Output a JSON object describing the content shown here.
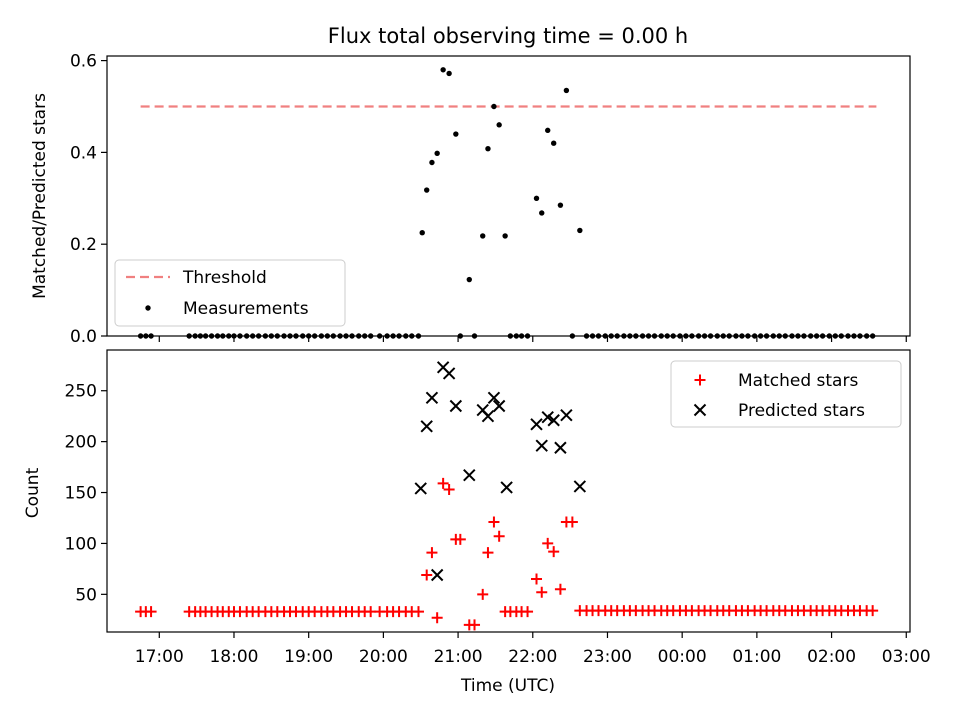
{
  "title": "Flux total observing time = 0.00 h",
  "colors": {
    "threshold": "#f08080",
    "measurements": "#000000",
    "matched": "#ff0000",
    "predicted": "#000000"
  },
  "chart_data": [
    {
      "type": "scatter",
      "panel": "top",
      "title": "Flux total observing time = 0.00 h",
      "xlabel": "",
      "ylabel": "Matched/Predicted stars",
      "ylim": [
        0,
        0.61
      ],
      "yticks": [
        0.0,
        0.2,
        0.4,
        0.6
      ],
      "ytick_labels": [
        "0.0",
        "0.2",
        "0.4",
        "0.6"
      ],
      "xlim": [
        16.3,
        27.05
      ],
      "grid": false,
      "legend": "lower-left",
      "series": [
        {
          "name": "Threshold",
          "kind": "dashed-line",
          "x": [
            16.75,
            26.6
          ],
          "y": [
            0.5,
            0.5
          ]
        },
        {
          "name": "Measurements",
          "kind": "points",
          "x": [
            16.75,
            16.82,
            16.89,
            17.4,
            17.48,
            17.55,
            17.62,
            17.7,
            17.78,
            17.85,
            17.93,
            18.0,
            18.08,
            18.17,
            18.25,
            18.33,
            18.42,
            18.5,
            18.58,
            18.67,
            18.75,
            18.83,
            18.92,
            19.0,
            19.08,
            19.17,
            19.25,
            19.33,
            19.42,
            19.5,
            19.58,
            19.67,
            19.75,
            19.83,
            19.95,
            20.05,
            20.13,
            20.21,
            20.3,
            20.38,
            20.47,
            20.52,
            20.58,
            20.65,
            20.72,
            20.8,
            20.88,
            20.97,
            21.03,
            21.15,
            21.22,
            21.33,
            21.4,
            21.48,
            21.55,
            21.63,
            21.7,
            21.78,
            21.85,
            21.93,
            22.05,
            22.12,
            22.2,
            22.28,
            22.37,
            22.45,
            22.53,
            22.63,
            22.72,
            22.8,
            22.88,
            22.97,
            23.05,
            23.13,
            23.22,
            23.3,
            23.38,
            23.47,
            23.55,
            23.63,
            23.72,
            23.8,
            23.88,
            23.97,
            24.05,
            24.13,
            24.22,
            24.3,
            24.38,
            24.47,
            24.55,
            24.63,
            24.72,
            24.8,
            24.88,
            24.97,
            25.05,
            25.13,
            25.22,
            25.3,
            25.38,
            25.47,
            25.55,
            25.63,
            25.72,
            25.8,
            25.88,
            25.97,
            26.05,
            26.13,
            26.22,
            26.3,
            26.38,
            26.47,
            26.55
          ],
          "y": [
            0,
            0,
            0,
            0,
            0,
            0,
            0,
            0,
            0,
            0,
            0,
            0,
            0,
            0,
            0,
            0,
            0,
            0,
            0,
            0,
            0,
            0,
            0,
            0,
            0,
            0,
            0,
            0,
            0,
            0,
            0,
            0,
            0,
            0,
            0,
            0,
            0,
            0,
            0,
            0,
            0,
            0.225,
            0.318,
            0.378,
            0.398,
            0.58,
            0.572,
            0.44,
            0.0,
            0.123,
            0.0,
            0.218,
            0.408,
            0.5,
            0.46,
            0.218,
            0.0,
            0.0,
            0.0,
            0.0,
            0.3,
            0.268,
            0.448,
            0.42,
            0.285,
            0.535,
            0.0,
            0.23,
            0,
            0,
            0,
            0,
            0,
            0,
            0,
            0,
            0,
            0,
            0,
            0,
            0,
            0,
            0,
            0,
            0,
            0,
            0,
            0,
            0,
            0,
            0,
            0,
            0,
            0,
            0,
            0,
            0,
            0,
            0,
            0,
            0,
            0,
            0,
            0,
            0,
            0,
            0,
            0,
            0,
            0,
            0,
            0,
            0,
            0,
            0
          ]
        }
      ]
    },
    {
      "type": "scatter",
      "panel": "bottom",
      "title": "",
      "xlabel": "Time (UTC)",
      "ylabel": "Count",
      "ylim": [
        13,
        290
      ],
      "yticks": [
        50,
        100,
        150,
        200,
        250
      ],
      "ytick_labels": [
        "50",
        "100",
        "150",
        "200",
        "250"
      ],
      "xlim": [
        16.3,
        27.05
      ],
      "xticks": [
        17,
        18,
        19,
        20,
        21,
        22,
        23,
        24,
        25,
        26,
        27
      ],
      "xtick_labels": [
        "17:00",
        "18:00",
        "19:00",
        "20:00",
        "21:00",
        "22:00",
        "23:00",
        "00:00",
        "01:00",
        "02:00",
        "03:00"
      ],
      "grid": false,
      "legend": "upper-right",
      "series": [
        {
          "name": "Matched stars",
          "kind": "plus",
          "x": [
            16.75,
            16.82,
            16.89,
            17.4,
            17.48,
            17.55,
            17.62,
            17.7,
            17.78,
            17.85,
            17.93,
            18.0,
            18.08,
            18.17,
            18.25,
            18.33,
            18.42,
            18.5,
            18.58,
            18.67,
            18.75,
            18.83,
            18.92,
            19.0,
            19.08,
            19.17,
            19.25,
            19.33,
            19.42,
            19.5,
            19.58,
            19.67,
            19.75,
            19.83,
            19.95,
            20.05,
            20.13,
            20.21,
            20.3,
            20.38,
            20.47,
            20.58,
            20.65,
            20.72,
            20.8,
            20.88,
            20.97,
            21.03,
            21.15,
            21.22,
            21.33,
            21.4,
            21.48,
            21.55,
            21.63,
            21.7,
            21.78,
            21.85,
            21.93,
            22.05,
            22.12,
            22.2,
            22.28,
            22.37,
            22.45,
            22.53,
            22.63,
            22.72,
            22.8,
            22.88,
            22.97,
            23.05,
            23.13,
            23.22,
            23.3,
            23.38,
            23.47,
            23.55,
            23.63,
            23.72,
            23.8,
            23.88,
            23.97,
            24.05,
            24.13,
            24.22,
            24.3,
            24.38,
            24.47,
            24.55,
            24.63,
            24.72,
            24.8,
            24.88,
            24.97,
            25.05,
            25.13,
            25.22,
            25.3,
            25.38,
            25.47,
            25.55,
            25.63,
            25.72,
            25.8,
            25.88,
            25.97,
            26.05,
            26.13,
            26.22,
            26.3,
            26.38,
            26.47,
            26.55
          ],
          "y": [
            33,
            33,
            33,
            33,
            33,
            33,
            33,
            33,
            33,
            33,
            33,
            33,
            33,
            33,
            33,
            33,
            33,
            33,
            33,
            33,
            33,
            33,
            33,
            33,
            33,
            33,
            33,
            33,
            33,
            33,
            33,
            33,
            33,
            33,
            33,
            33,
            33,
            33,
            33,
            33,
            33,
            69,
            91,
            27,
            159,
            153,
            104,
            104,
            20,
            20,
            50,
            91,
            121,
            107,
            33,
            33,
            33,
            33,
            33,
            65,
            52,
            100,
            92,
            55,
            121,
            121,
            34,
            34,
            34,
            34,
            34,
            34,
            34,
            34,
            34,
            34,
            34,
            34,
            34,
            34,
            34,
            34,
            34,
            34,
            34,
            34,
            34,
            34,
            34,
            34,
            34,
            34,
            34,
            34,
            34,
            34,
            34,
            34,
            34,
            34,
            34,
            34,
            34,
            34,
            34,
            34,
            34,
            34,
            34,
            34,
            34,
            34,
            34,
            34
          ]
        },
        {
          "name": "Predicted stars",
          "kind": "x",
          "x": [
            20.5,
            20.58,
            20.65,
            20.72,
            20.8,
            20.88,
            20.97,
            21.15,
            21.33,
            21.4,
            21.48,
            21.55,
            21.65,
            22.05,
            22.12,
            22.2,
            22.28,
            22.37,
            22.45,
            22.63
          ],
          "y": [
            154,
            215,
            243,
            69,
            273,
            267,
            235,
            167,
            231,
            225,
            243,
            235,
            155,
            217,
            196,
            224,
            221,
            194,
            226,
            156
          ]
        }
      ]
    }
  ]
}
